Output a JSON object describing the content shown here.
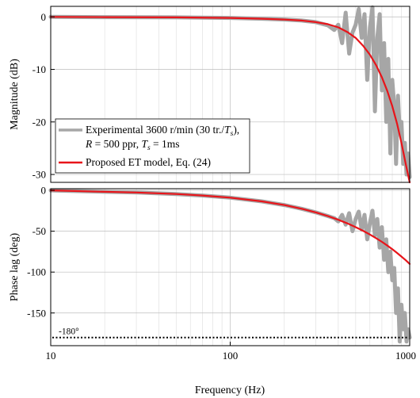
{
  "chart_data": [
    {
      "type": "line",
      "panel": "magnitude",
      "xlabel": "",
      "ylabel": "Magnitude (dB)",
      "xscale": "log",
      "xlim": [
        10,
        1000
      ],
      "ylim": [
        -31.5,
        2
      ],
      "yticks": [
        0,
        -10,
        -20,
        -30
      ],
      "ytick_labels": [
        "0",
        "-10",
        "-20",
        "-30"
      ],
      "grid": true,
      "legend": {
        "placement": "bottom-left",
        "entries": [
          {
            "line1_pre": "Experimental 3600 r/min (30 tr./",
            "line1_var": "T",
            "line1_sub": "s",
            "line1_post": "),",
            "line2_var_R": "R",
            "line2_mid": " = 500 ppr, ",
            "line2_var": "T",
            "line2_sub": "s",
            "line2_post": " = 1ms",
            "color": "#a6a6a6"
          },
          {
            "text": "Proposed ET model, Eq. (24)",
            "color": "#e8141a"
          }
        ]
      },
      "series": [
        {
          "name": "Proposed ET model, Eq. (24)",
          "color": "#e8141a",
          "x": [
            10,
            20,
            50,
            100,
            150,
            200,
            250,
            300,
            350,
            400,
            450,
            500,
            550,
            600,
            650,
            700,
            750,
            800,
            850,
            900,
            950,
            1000
          ],
          "y": [
            0,
            -0.05,
            -0.1,
            -0.2,
            -0.35,
            -0.5,
            -0.7,
            -1.0,
            -1.4,
            -2.0,
            -2.9,
            -4.0,
            -5.5,
            -7.2,
            -9.2,
            -11.5,
            -14.1,
            -17.0,
            -20.3,
            -24.0,
            -28.0,
            -32.0
          ]
        },
        {
          "name": "Experimental 3600 r/min (30 tr./Ts), R = 500 ppr, Ts = 1ms",
          "color": "#a6a6a6",
          "x": [
            10,
            20,
            50,
            100,
            150,
            200,
            250,
            300,
            350,
            380,
            400,
            420,
            440,
            460,
            480,
            500,
            520,
            540,
            560,
            580,
            600,
            620,
            640,
            660,
            680,
            700,
            720,
            740,
            760,
            780,
            800,
            820,
            840,
            860,
            880,
            900,
            920,
            940,
            960,
            980,
            1000
          ],
          "y": [
            0,
            -0.05,
            -0.1,
            -0.2,
            -0.35,
            -0.5,
            -0.7,
            -1.0,
            -1.6,
            -2.5,
            -1.5,
            -5.0,
            0.8,
            -7.0,
            -3.0,
            -1.5,
            1.5,
            -4.0,
            0.5,
            -12.0,
            -2.0,
            1.8,
            -18.0,
            -4.0,
            0.5,
            -14.0,
            -5.0,
            -20.0,
            -8.0,
            -26.0,
            -12.0,
            -17.0,
            -28.0,
            -15.0,
            -22.0,
            -20.0,
            -28.0,
            -24.0,
            -30.0,
            -26.0,
            -30.5
          ]
        }
      ]
    },
    {
      "type": "line",
      "panel": "phase",
      "xlabel": "Frequency (Hz)",
      "ylabel": "Phase lag (deg)",
      "xscale": "log",
      "xlim": [
        10,
        1000
      ],
      "ylim": [
        -190,
        2
      ],
      "xticks": [
        10,
        100,
        1000
      ],
      "xtick_labels": [
        "10",
        "100",
        "1000"
      ],
      "yticks": [
        0,
        -50,
        -100,
        -150
      ],
      "ytick_labels": [
        "0",
        "-50",
        "-100",
        "-150"
      ],
      "grid": true,
      "reference_line": {
        "y": -180,
        "label": "-180°",
        "style": "dotted"
      },
      "series": [
        {
          "name": "Proposed ET model, Eq. (24)",
          "color": "#e8141a",
          "x": [
            10,
            20,
            30,
            50,
            70,
            100,
            150,
            200,
            250,
            300,
            350,
            400,
            450,
            500,
            550,
            600,
            650,
            700,
            750,
            800,
            850,
            900,
            950,
            1000
          ],
          "y": [
            0,
            -1.8,
            -2.7,
            -4.5,
            -6.3,
            -9,
            -13.5,
            -18,
            -22.5,
            -27,
            -31.5,
            -36,
            -40.5,
            -45,
            -49.5,
            -54,
            -58.5,
            -63,
            -67.5,
            -72,
            -76.5,
            -81,
            -85.5,
            -90
          ]
        },
        {
          "name": "Experimental 3600 r/min (30 tr./Ts), R = 500 ppr, Ts = 1ms",
          "color": "#a6a6a6",
          "x": [
            10,
            20,
            30,
            50,
            70,
            100,
            150,
            200,
            250,
            300,
            350,
            380,
            400,
            420,
            440,
            460,
            480,
            500,
            520,
            540,
            560,
            580,
            600,
            620,
            640,
            660,
            680,
            700,
            720,
            740,
            760,
            780,
            800,
            820,
            840,
            860,
            880,
            900,
            920,
            940,
            960,
            980,
            1000
          ],
          "y": [
            0,
            -1.8,
            -2.7,
            -4.5,
            -6.3,
            -9,
            -13.5,
            -18,
            -22.5,
            -27,
            -31.5,
            -34,
            -38,
            -30,
            -42,
            -28,
            -50,
            -35,
            -26,
            -48,
            -30,
            -60,
            -40,
            -25,
            -55,
            -35,
            -70,
            -45,
            -85,
            -60,
            -100,
            -75,
            -110,
            -95,
            -150,
            -120,
            -185,
            -140,
            -170,
            -150,
            -185,
            -170,
            -180
          ]
        }
      ]
    }
  ]
}
